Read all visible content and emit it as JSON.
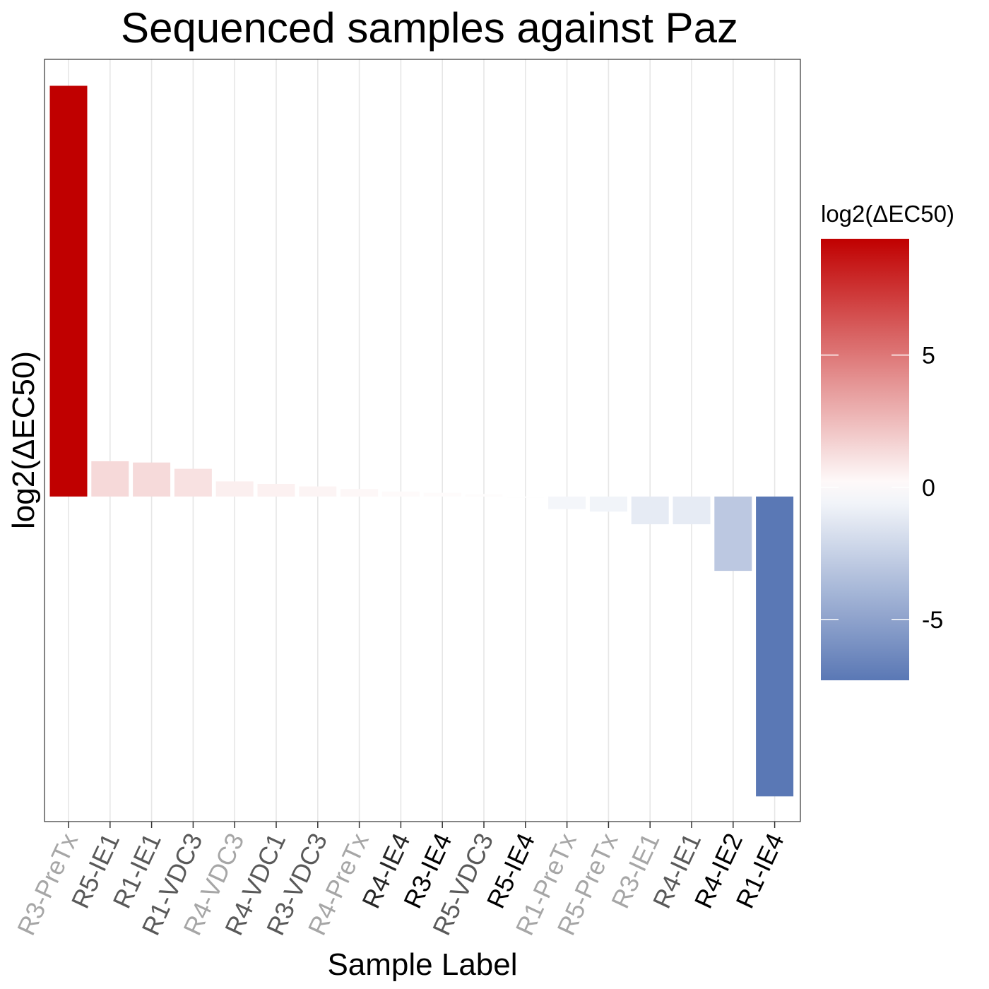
{
  "chart_data": {
    "type": "bar",
    "title": "Sequenced samples against Paz",
    "xlabel": "Sample Label",
    "ylabel": "log2(ΔEC50)",
    "categories": [
      "R3-PreTx",
      "R5-IE1",
      "R1-IE1",
      "R1-VDC3",
      "R4-VDC3",
      "R4-VDC1",
      "R3-VDC3",
      "R4-PreTx",
      "R4-IE4",
      "R3-IE4",
      "R5-VDC3",
      "R5-IE4",
      "R1-PreTx",
      "R5-PreTx",
      "R3-IE1",
      "R4-IE1",
      "R4-IE2",
      "R1-IE4"
    ],
    "category_label_colors": [
      "#a6a6a6",
      "#595959",
      "#595959",
      "#595959",
      "#a6a6a6",
      "#595959",
      "#595959",
      "#a6a6a6",
      "#262626",
      "#000000",
      "#595959",
      "#000000",
      "#a6a6a6",
      "#a6a6a6",
      "#a6a6a6",
      "#595959",
      "#000000",
      "#000000"
    ],
    "values": [
      16.3,
      1.4,
      1.35,
      1.1,
      0.6,
      0.5,
      0.4,
      0.3,
      0.2,
      0.15,
      0.1,
      -0.05,
      -0.5,
      -0.6,
      -1.1,
      -1.1,
      -2.95,
      -11.9
    ],
    "ylim": [
      -12.9,
      17.35
    ],
    "grid": "vertical only",
    "legend": {
      "title": "log2(ΔEC50)",
      "placement": "right",
      "type": "colorbar",
      "ticks": [
        5,
        0,
        -5
      ],
      "range": [
        -7.3,
        9.4
      ],
      "colors": {
        "high": "#c00000",
        "mid": "#ffffff",
        "low": "#5a78b5"
      }
    }
  }
}
